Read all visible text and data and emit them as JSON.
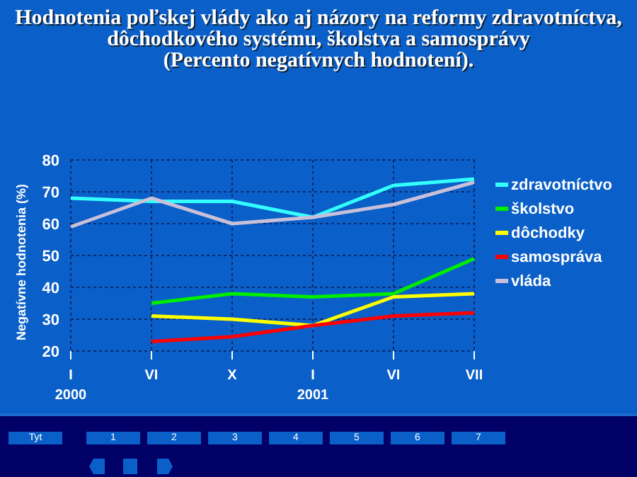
{
  "chart_data": {
    "type": "line",
    "title": "Hodnotenia poľskej vlády ako aj názory na reformy zdravotníctva, dôchodkového systému, školstva a samosprávy",
    "subtitle": "(Percento negatívnych hodnotení).",
    "ylabel": "Negatívne hodnotenia (%)",
    "categories": [
      "I 2000",
      "VI",
      "X",
      "I 2001",
      "VI",
      "VII"
    ],
    "series": [
      {
        "name": "zdravotníctvo",
        "color": "#33ffff",
        "values": [
          68,
          67,
          67,
          62,
          72,
          74
        ]
      },
      {
        "name": "školstvo",
        "color": "#00ee00",
        "values": [
          null,
          35,
          38,
          37,
          38,
          49
        ]
      },
      {
        "name": "dôchodky",
        "color": "#ffff00",
        "values": [
          null,
          31,
          30,
          28,
          37,
          38
        ]
      },
      {
        "name": "samospráva",
        "color": "#ff0000",
        "values": [
          null,
          23,
          24.5,
          28,
          31,
          32
        ]
      },
      {
        "name": "vláda",
        "color": "#c8c0d8",
        "values": [
          59,
          68,
          60,
          62,
          66,
          73
        ]
      }
    ],
    "ylim": [
      20,
      80
    ],
    "yticks": [
      20,
      30,
      40,
      50,
      60,
      70,
      80
    ],
    "grid": true,
    "legend": "right",
    "marker": "none",
    "line_style": "solid",
    "annotations": [
      "Tyt",
      "1",
      "2",
      "3",
      "4",
      "5",
      "6",
      "7"
    ]
  }
}
